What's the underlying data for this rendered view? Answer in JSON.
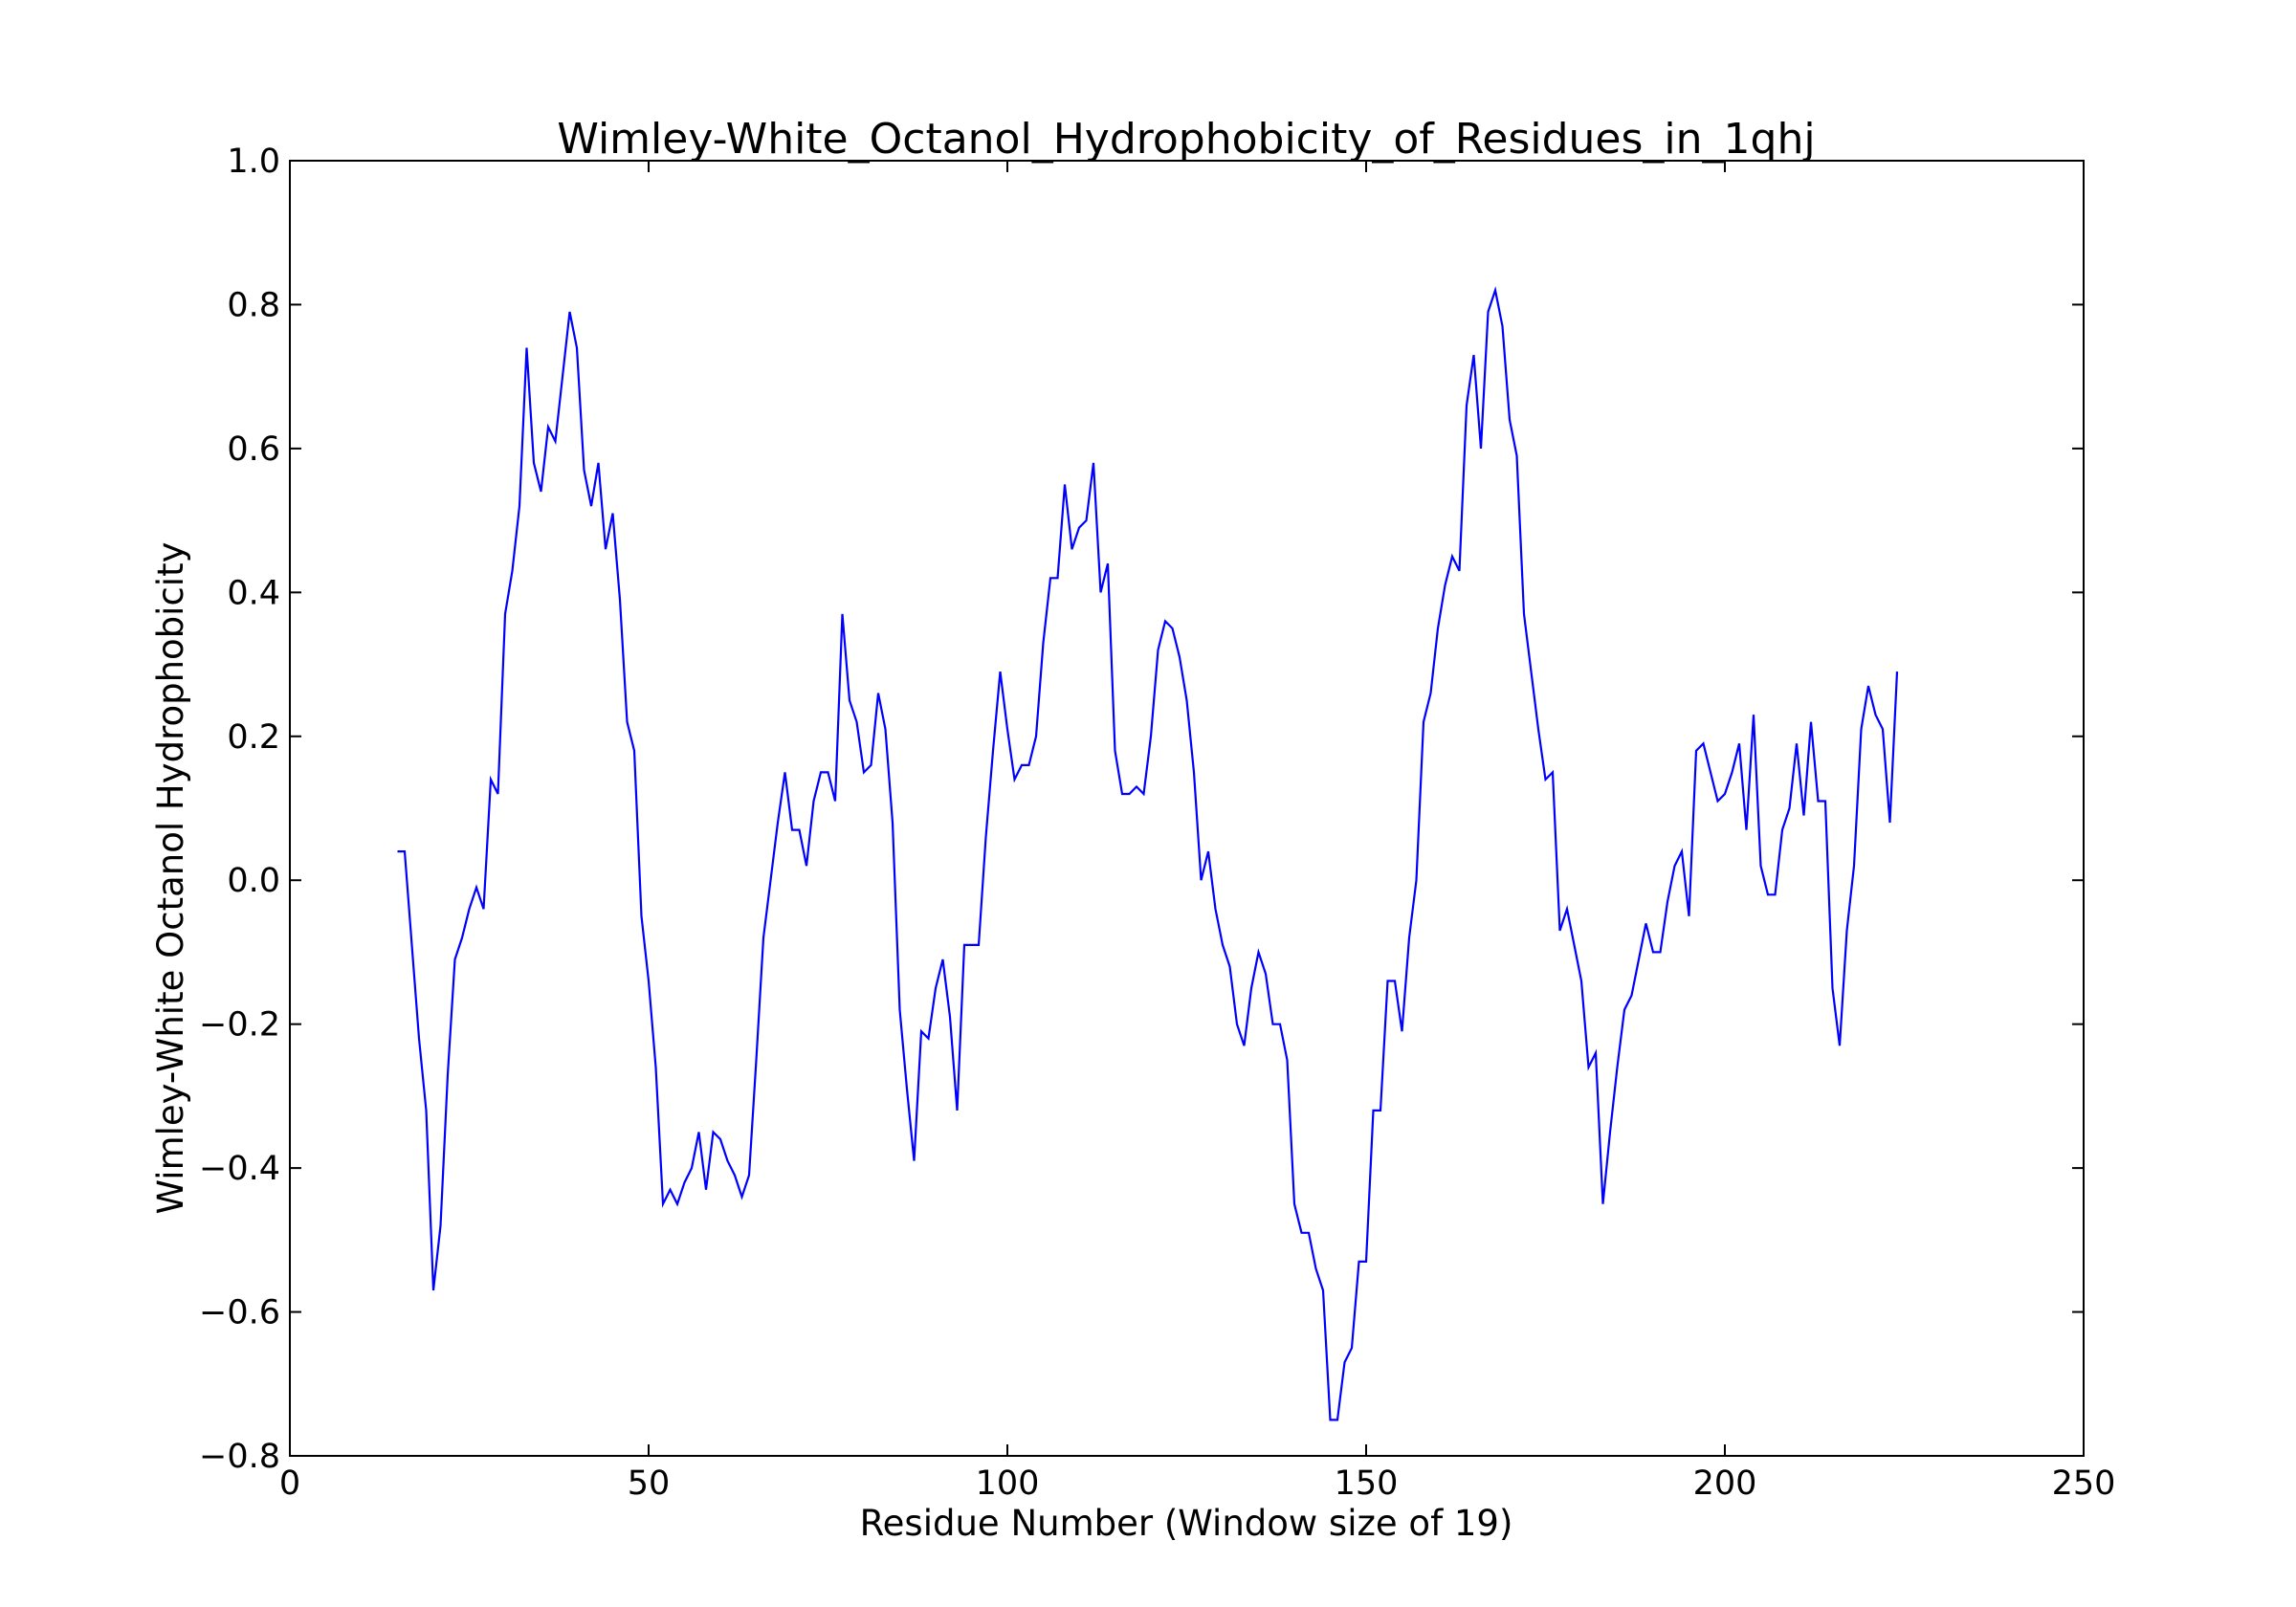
{
  "chart_data": {
    "type": "line",
    "title": "Wimley-White_Octanol_Hydrophobicity_of_Residues_in_1qhj",
    "xlabel": "Residue Number (Window size of 19)",
    "ylabel": "Wimley-White Octanol Hydrophobicity",
    "xlim": [
      0,
      250
    ],
    "ylim": [
      -0.8,
      1.0
    ],
    "xticks": [
      0,
      50,
      100,
      150,
      200,
      250
    ],
    "xtick_labels": [
      "0",
      "50",
      "100",
      "150",
      "200",
      "250"
    ],
    "yticks": [
      -0.8,
      -0.6,
      -0.4,
      -0.2,
      0.0,
      0.2,
      0.4,
      0.6,
      0.8,
      1.0
    ],
    "ytick_labels": [
      "−0.8",
      "−0.6",
      "−0.4",
      "−0.2",
      "0.0",
      "0.2",
      "0.4",
      "0.6",
      "0.8",
      "1.0"
    ],
    "grid": false,
    "line_color": "#0000ff",
    "series": [
      {
        "x": [
          15,
          16,
          17,
          18,
          19,
          20,
          21,
          22,
          23,
          24,
          25,
          26,
          27,
          28,
          29,
          30,
          31,
          32,
          33,
          34,
          35,
          36,
          37,
          38,
          39,
          40,
          41,
          42,
          43,
          44,
          45,
          46,
          47,
          48,
          49,
          50,
          51,
          52,
          53,
          54,
          55,
          56,
          57,
          58,
          59,
          60,
          61,
          62,
          63,
          64,
          65,
          66,
          67,
          68,
          69,
          70,
          71,
          72,
          73,
          74,
          75,
          76,
          77,
          78,
          79,
          80,
          81,
          82,
          83,
          84,
          85,
          86,
          87,
          88,
          89,
          90,
          91,
          92,
          93,
          94,
          95,
          96,
          97,
          98,
          99,
          100,
          101,
          102,
          103,
          104,
          105,
          106,
          107,
          108,
          109,
          110,
          111,
          112,
          113,
          114,
          115,
          116,
          117,
          118,
          119,
          120,
          121,
          122,
          123,
          124,
          125,
          126,
          127,
          128,
          129,
          130,
          131,
          132,
          133,
          134,
          135,
          136,
          137,
          138,
          139,
          140,
          141,
          142,
          143,
          144,
          145,
          146,
          147,
          148,
          149,
          150,
          151,
          152,
          153,
          154,
          155,
          156,
          157,
          158,
          159,
          160,
          161,
          162,
          163,
          164,
          165,
          166,
          167,
          168,
          169,
          170,
          171,
          172,
          173,
          174,
          175,
          176,
          177,
          178,
          179,
          180,
          181,
          182,
          183,
          184,
          185,
          186,
          187,
          188,
          189,
          190,
          191,
          192,
          193,
          194,
          195,
          196,
          197,
          198,
          199,
          200,
          201,
          202,
          203,
          204,
          205,
          206,
          207,
          208,
          209,
          210,
          211,
          212,
          213,
          214,
          215,
          216,
          217,
          218,
          219,
          220,
          221,
          222,
          223,
          224
        ],
        "y": [
          0.04,
          0.04,
          -0.09,
          -0.22,
          -0.32,
          -0.57,
          -0.48,
          -0.27,
          -0.11,
          -0.08,
          -0.04,
          -0.01,
          -0.04,
          0.14,
          0.12,
          0.37,
          0.43,
          0.52,
          0.74,
          0.58,
          0.54,
          0.63,
          0.61,
          0.7,
          0.79,
          0.74,
          0.57,
          0.52,
          0.58,
          0.46,
          0.51,
          0.39,
          0.22,
          0.18,
          -0.05,
          -0.14,
          -0.26,
          -0.45,
          -0.43,
          -0.45,
          -0.42,
          -0.4,
          -0.35,
          -0.43,
          -0.35,
          -0.36,
          -0.39,
          -0.41,
          -0.44,
          -0.41,
          -0.25,
          -0.08,
          0.0,
          0.08,
          0.15,
          0.07,
          0.07,
          0.02,
          0.11,
          0.15,
          0.15,
          0.11,
          0.37,
          0.25,
          0.22,
          0.15,
          0.16,
          0.26,
          0.21,
          0.08,
          -0.18,
          -0.29,
          -0.39,
          -0.21,
          -0.22,
          -0.15,
          -0.11,
          -0.19,
          -0.32,
          -0.09,
          -0.09,
          -0.09,
          0.06,
          0.18,
          0.29,
          0.21,
          0.14,
          0.16,
          0.16,
          0.2,
          0.33,
          0.42,
          0.42,
          0.55,
          0.46,
          0.49,
          0.5,
          0.58,
          0.4,
          0.44,
          0.18,
          0.12,
          0.12,
          0.13,
          0.12,
          0.2,
          0.32,
          0.36,
          0.35,
          0.31,
          0.25,
          0.15,
          0.0,
          0.04,
          -0.04,
          -0.09,
          -0.12,
          -0.2,
          -0.23,
          -0.15,
          -0.1,
          -0.13,
          -0.2,
          -0.2,
          -0.25,
          -0.45,
          -0.49,
          -0.49,
          -0.54,
          -0.57,
          -0.75,
          -0.75,
          -0.67,
          -0.65,
          -0.53,
          -0.53,
          -0.32,
          -0.32,
          -0.14,
          -0.14,
          -0.21,
          -0.08,
          0.0,
          0.22,
          0.26,
          0.35,
          0.41,
          0.45,
          0.43,
          0.66,
          0.73,
          0.6,
          0.79,
          0.82,
          0.77,
          0.64,
          0.59,
          0.37,
          0.29,
          0.21,
          0.14,
          0.15,
          -0.07,
          -0.04,
          -0.09,
          -0.14,
          -0.26,
          -0.24,
          -0.45,
          -0.35,
          -0.26,
          -0.18,
          -0.16,
          -0.11,
          -0.06,
          -0.1,
          -0.1,
          -0.03,
          0.02,
          0.04,
          -0.05,
          0.18,
          0.19,
          0.15,
          0.11,
          0.12,
          0.15,
          0.19,
          0.07,
          0.23,
          0.02,
          -0.02,
          -0.02,
          0.07,
          0.1,
          0.19,
          0.09,
          0.22,
          0.11,
          0.11,
          -0.15,
          -0.23,
          -0.07,
          0.02,
          0.21,
          0.27,
          0.23,
          0.21,
          0.08,
          0.29
        ]
      }
    ]
  }
}
